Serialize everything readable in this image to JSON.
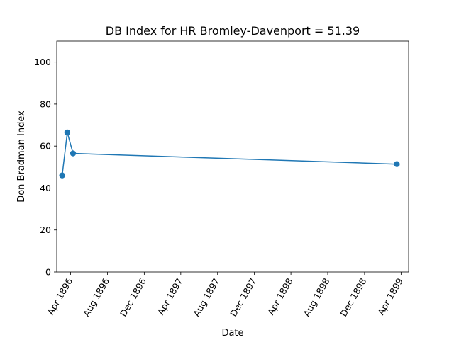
{
  "chart_data": {
    "type": "line",
    "title": "DB Index for HR Bromley-Davenport = 51.39",
    "xlabel": "Date",
    "ylabel": "Don Bradman Index",
    "ylim": [
      0,
      110
    ],
    "xlim": [
      "1896-02-15",
      "1899-04-26"
    ],
    "grid": false,
    "y_ticks": [
      0,
      20,
      40,
      60,
      80,
      100
    ],
    "x_ticks": [
      {
        "date": "1896-04-01",
        "label": "Apr 1896"
      },
      {
        "date": "1896-08-01",
        "label": "Aug 1896"
      },
      {
        "date": "1896-12-01",
        "label": "Dec 1896"
      },
      {
        "date": "1897-04-01",
        "label": "Apr 1897"
      },
      {
        "date": "1897-08-01",
        "label": "Aug 1897"
      },
      {
        "date": "1897-12-01",
        "label": "Dec 1897"
      },
      {
        "date": "1898-04-01",
        "label": "Apr 1898"
      },
      {
        "date": "1898-08-01",
        "label": "Aug 1898"
      },
      {
        "date": "1898-12-01",
        "label": "Dec 1898"
      },
      {
        "date": "1899-04-01",
        "label": "Apr 1899"
      }
    ],
    "series": [
      {
        "color": "#1f77b4",
        "points": [
          {
            "x": "1896-03-04",
            "y": 46.0
          },
          {
            "x": "1896-03-21",
            "y": 66.5
          },
          {
            "x": "1896-04-09",
            "y": 56.5
          },
          {
            "x": "1899-03-18",
            "y": 51.39
          }
        ]
      }
    ]
  }
}
